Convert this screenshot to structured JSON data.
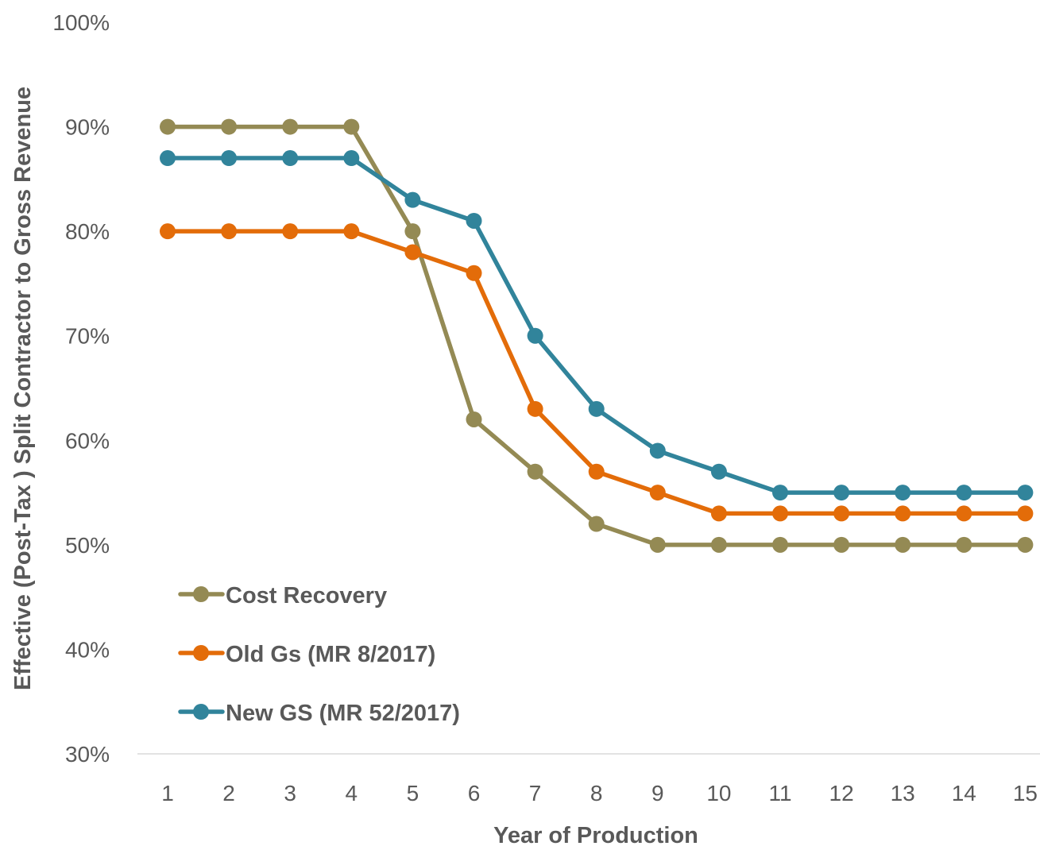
{
  "chart_data": {
    "type": "line",
    "title": "",
    "xlabel": "Year of Production",
    "ylabel": "Effective (Post-Tax ) Split Contractor to Gross Revenue",
    "x": [
      1,
      2,
      3,
      4,
      5,
      6,
      7,
      8,
      9,
      10,
      11,
      12,
      13,
      14,
      15
    ],
    "x_tick_labels": [
      "1",
      "2",
      "3",
      "4",
      "5",
      "6",
      "7",
      "8",
      "9",
      "10",
      "11",
      "12",
      "13",
      "14",
      "15"
    ],
    "ylim": [
      0.3,
      1.0
    ],
    "y_ticks": [
      0.3,
      0.4,
      0.5,
      0.6,
      0.7,
      0.8,
      0.9,
      1.0
    ],
    "y_tick_labels": [
      "30%",
      "40%",
      "50%",
      "60%",
      "70%",
      "80%",
      "90%",
      "100%"
    ],
    "grid": false,
    "legend_position": "bottom-left",
    "series": [
      {
        "name": "Cost Recovery",
        "color": "#948A54",
        "values": [
          0.9,
          0.9,
          0.9,
          0.9,
          0.8,
          0.62,
          0.57,
          0.52,
          0.5,
          0.5,
          0.5,
          0.5,
          0.5,
          0.5,
          0.5
        ]
      },
      {
        "name": "Old Gs (MR 8/2017)",
        "color": "#E36C09",
        "values": [
          0.8,
          0.8,
          0.8,
          0.8,
          0.78,
          0.76,
          0.63,
          0.57,
          0.55,
          0.53,
          0.53,
          0.53,
          0.53,
          0.53,
          0.53
        ]
      },
      {
        "name": "New GS (MR 52/2017)",
        "color": "#31849B",
        "values": [
          0.87,
          0.87,
          0.87,
          0.87,
          0.83,
          0.81,
          0.7,
          0.63,
          0.59,
          0.57,
          0.55,
          0.55,
          0.55,
          0.55,
          0.55
        ]
      }
    ]
  }
}
